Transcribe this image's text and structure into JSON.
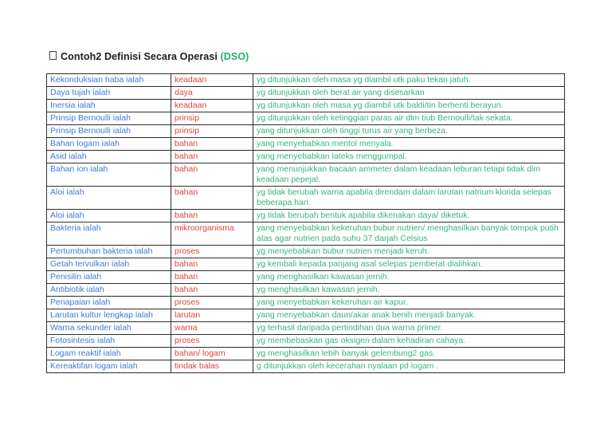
{
  "header": {
    "title_prefix_icon": "missing-glyph-box",
    "title": "Contoh2 Definisi Secara Operasi",
    "title_highlight": "(DSO)"
  },
  "colors": {
    "title_text": "#1c1c1c",
    "title_highlight_green": "#21b16c",
    "term_blue": "#3b7cd5",
    "category_red": "#e04438",
    "definition_green": "#35b57f",
    "table_border": "#2d2d2d",
    "page_background": "#ffffff"
  },
  "table": {
    "columns": [
      "term",
      "category",
      "definition"
    ],
    "rows": [
      {
        "term": "Kekonduksian haba ialah",
        "category": "keadaan",
        "definition": "yg ditunjukkan oleh masa yg diambil utk paku tekan jatuh."
      },
      {
        "term": "Daya tujah ialah",
        "category": "daya",
        "definition": "yg ditunjukkan oleh berat air yang disesarkan"
      },
      {
        "term": "Inersia ialah",
        "category": "keadaan",
        "definition": "yg ditunjukkan oleh masa yg diambil utk baldi/tin berhenti berayun."
      },
      {
        "term": "Prinsip Bernoulli ialah",
        "category": "prinsip",
        "definition": "yg ditunjukkan oleh ketinggian paras air dlm tiub Bernoulli/tak sekata."
      },
      {
        "term": "Prinsip Bernoulli ialah",
        "category": "prinsip",
        "definition": "yang ditunjukkan oleh tinggi turus air yang berbeza."
      },
      {
        "term": "Bahan logam ialah",
        "category": "bahan",
        "definition": "yang menyebabkan mentol menyala."
      },
      {
        "term": "Asid ialah",
        "category": "bahan",
        "definition": "yang menyebabkan lateks menggumpal."
      },
      {
        "term": "Bahan ion ialah",
        "category": "bahan",
        "definition": "yang menunjukkan bacaan ammeter dalam keadaan leburan tetapi tidak dlm keadaan pepejal."
      },
      {
        "term": "Aloi ialah",
        "category": "bahan",
        "definition": "yg tidak berubah warna apabila direndam dalam larutan natrium klorida selepas beberapa hari."
      },
      {
        "term": "Aloi ialah",
        "category": "bahan",
        "definition": "yg tidak berubah bentuk apabila dikenakan daya/ diketuk."
      },
      {
        "term": "Bakteria ialah",
        "category": "mikroorganisma",
        "definition": "yang menyebabkan kekeruhan bubur nutrien/ menghasilkan banyak tompok putih atas agar nutrien pada suhu 37 darjah Celsius"
      },
      {
        "term": "Pertumbuhan bakteria ialah",
        "category": "proses",
        "definition": "yg menyebabkan bubur nutrien menjadi keruh."
      },
      {
        "term": "Getah tervulkan ialah",
        "category": "bahan",
        "definition": "yg kembali kepada panjang asal selepas pemberat dialihkan."
      },
      {
        "term": "Penisilin ialah",
        "category": "bahan",
        "definition": "yang menghasilkan kawasan jernih."
      },
      {
        "term": "Antibiotik ialah",
        "category": "bahan",
        "definition": "yg menghasilkan kawasan jernih."
      },
      {
        "term": "Penapaian ialah",
        "category": "proses",
        "definition": "yang menyebabkan kekeruhan air kapur."
      },
      {
        "term": "Larutan kultur lengkap ialah",
        "category": "larutan",
        "definition": "yang menyebabkan daun/akar anak benih menjadi banyak."
      },
      {
        "term": "Warna sekunder ialah",
        "category": "warna",
        "definition": "yg terhasil daripada pertindihan dua warna primer."
      },
      {
        "term": "Fotosintesis ialah",
        "category": "proses",
        "definition": "yg membebaskan gas oksigen dalam kehadiran cahaya."
      },
      {
        "term": "Logam reaktif ialah",
        "category": "bahan/ logam",
        "definition": "yg menghasilkan lebih banyak gelembung2 gas."
      },
      {
        "term": "Kereaktifan logam ialah",
        "category": "tindak balas",
        "definition": "g ditunjukkan oleh kecerahan nyalaan pd logam ."
      }
    ]
  }
}
